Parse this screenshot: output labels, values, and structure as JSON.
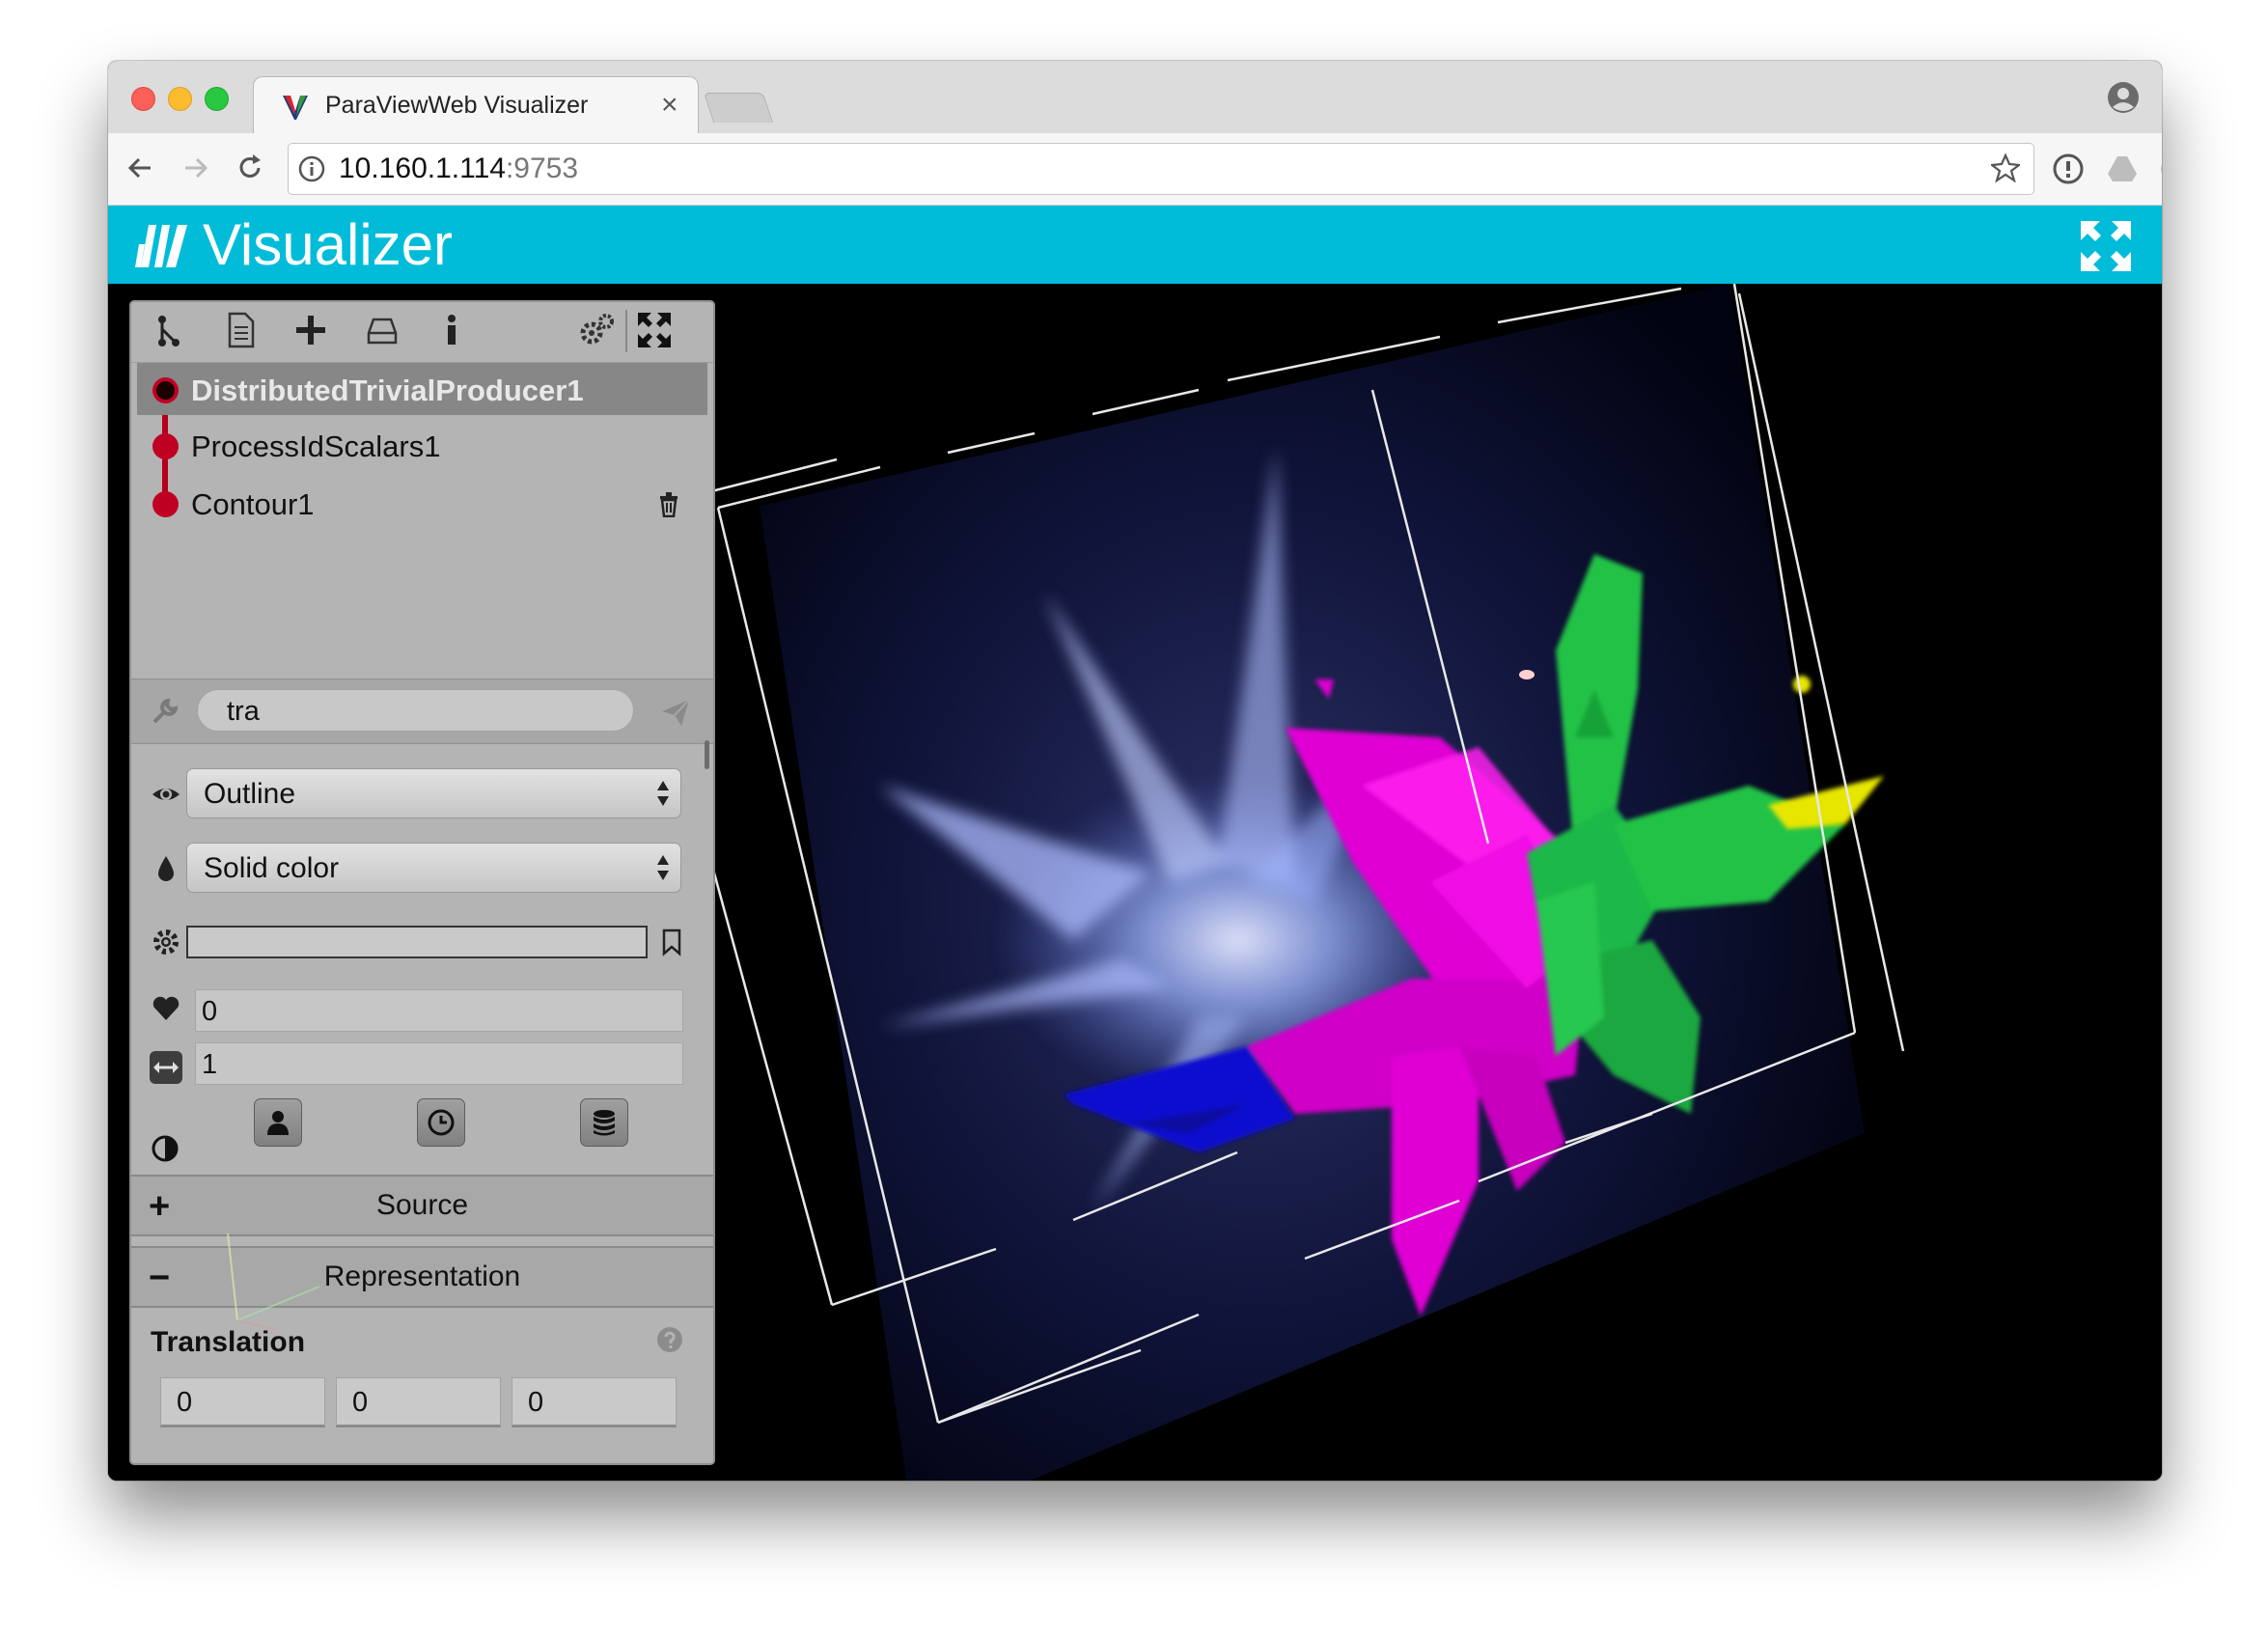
{
  "browser": {
    "tab_title": "ParaViewWeb Visualizer",
    "tab_close": "×",
    "url_host": "10.160.1.114",
    "url_port": ":9753"
  },
  "app": {
    "title": "Visualizer"
  },
  "pipeline": {
    "items": [
      {
        "label": "DistributedTrivialProducer1"
      },
      {
        "label": "ProcessIdScalars1"
      },
      {
        "label": "Contour1"
      }
    ]
  },
  "search": {
    "value": "tra"
  },
  "properties": {
    "representation_select": "Outline",
    "color_select": "Solid color",
    "field_one": "0",
    "field_two": "1"
  },
  "sections": {
    "source_label": "Source",
    "source_sign": "+",
    "representation_label": "Representation",
    "representation_sign": "−"
  },
  "translation": {
    "title": "Translation",
    "values": [
      "0",
      "0",
      "0"
    ]
  },
  "colors": {
    "header": "#00bcd9",
    "pipeline_accent": "#c00022",
    "panel_bg": "#b4b4b4",
    "magenta_surface": "#e000d4",
    "green_surface": "#22c247",
    "blue_surface": "#1010d0",
    "yellow_surface": "#e6e600",
    "volume_glow": "#9fb6ff"
  }
}
